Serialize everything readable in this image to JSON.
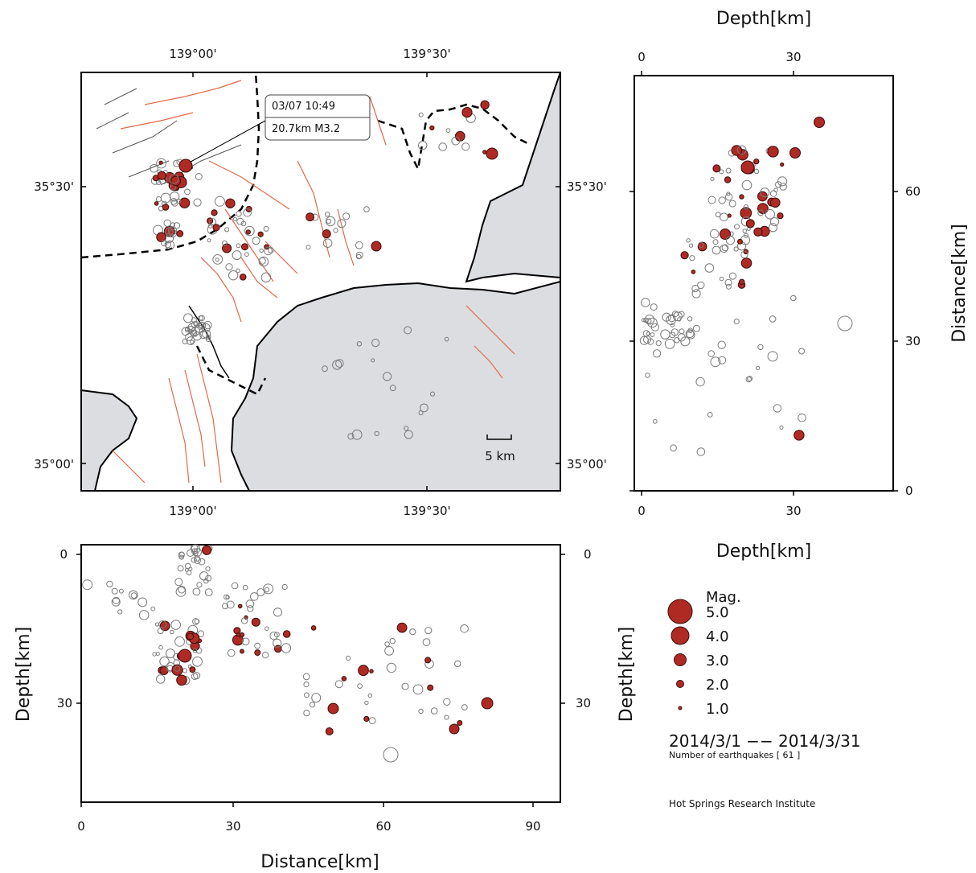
{
  "colors": {
    "quake_fill": "#b02a24",
    "quake_stroke": "#3a0d0b",
    "aftershock_stroke": "#7a7a7a",
    "fault": "#e06a4a",
    "coast": "#000000",
    "sea": "#dcdde1"
  },
  "map": {
    "lon_labels_top": [
      "139°00'",
      "139°30'"
    ],
    "lon_labels_bottom": [
      "139°00'",
      "139°30'"
    ],
    "lat_labels_left": [
      "35°30'",
      "35°00'"
    ],
    "lat_labels_right": [
      "35°30'",
      "35°00'"
    ],
    "tooltip_time": "03/07 10:49",
    "tooltip_detail": "20.7km M3.2",
    "scale_label": "5 km"
  },
  "side_panel": {
    "top_title": "Depth[km]",
    "bottom_title": "Depth[km]",
    "right_title": "Distance[km]",
    "x_ticks": [
      "0",
      "30"
    ],
    "y_ticks": [
      "60",
      "30",
      "0"
    ]
  },
  "bottom_panel": {
    "left_title": "Depth[km]",
    "right_title": "Depth[km]",
    "bottom_title": "Distance[km]",
    "x_ticks": [
      "0",
      "30",
      "60",
      "90"
    ],
    "y_ticks": [
      "0",
      "30"
    ]
  },
  "legend": {
    "title": "Mag.",
    "items": [
      "5.0",
      "4.0",
      "3.0",
      "2.0",
      "1.0"
    ],
    "period": "2014/3/1 −− 2014/3/31",
    "count": "Number of earthquakes [ 61 ]"
  },
  "institute": "Hot Springs Research Institute"
}
